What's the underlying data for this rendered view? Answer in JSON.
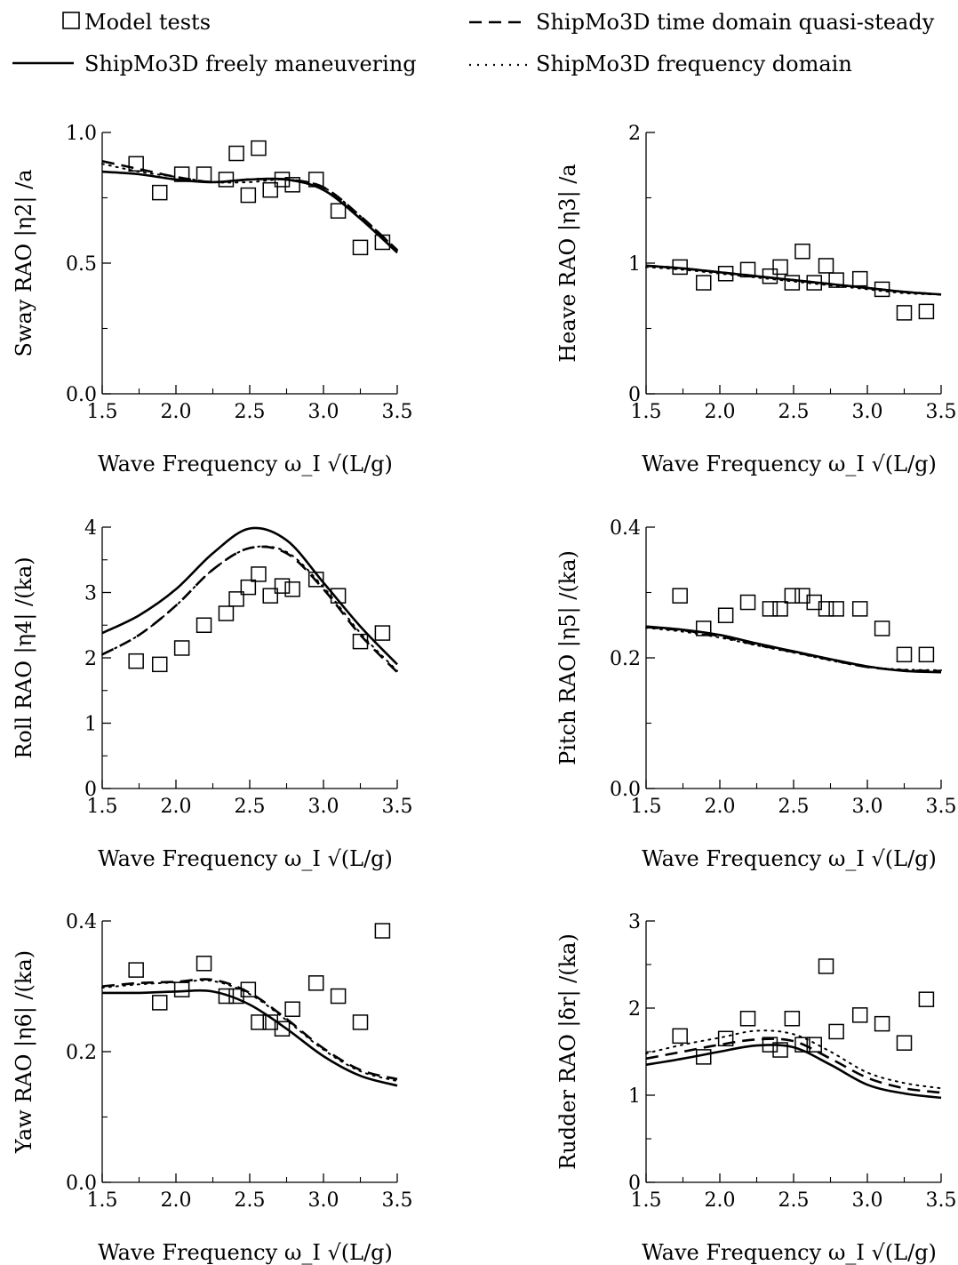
{
  "legend": {
    "model_tests": "Model tests",
    "time_domain": "ShipMo3D time domain quasi-steady",
    "freely": "ShipMo3D freely maneuvering",
    "frequency": "ShipMo3D frequency domain"
  },
  "chart_data": [
    {
      "type": "line",
      "title": "",
      "xlabel": "Wave Frequency ω_I √(L/g)",
      "ylabel": "Sway RAO |η2| /a",
      "xlim": [
        1.5,
        3.5
      ],
      "ylim": [
        0,
        1.0
      ],
      "xticks": [
        "1.5",
        "2.0",
        "2.5",
        "3.0",
        "3.5"
      ],
      "yticks": [
        "0.0",
        "0.5",
        "1.0"
      ],
      "grid": false,
      "x": [
        1.5,
        1.75,
        2.0,
        2.25,
        2.5,
        2.75,
        3.0,
        3.25,
        3.5
      ],
      "series": [
        {
          "name": "ShipMo3D freely maneuvering",
          "values": [
            0.85,
            0.84,
            0.82,
            0.81,
            0.82,
            0.82,
            0.78,
            0.67,
            0.54
          ]
        },
        {
          "name": "ShipMo3D time domain quasi-steady",
          "values": [
            0.89,
            0.86,
            0.83,
            0.81,
            0.82,
            0.82,
            0.79,
            0.68,
            0.55
          ]
        },
        {
          "name": "ShipMo3D frequency domain",
          "values": [
            0.88,
            0.85,
            0.83,
            0.81,
            0.81,
            0.82,
            0.79,
            0.68,
            0.55
          ]
        }
      ],
      "model_tests": [
        [
          1.73,
          0.88
        ],
        [
          1.89,
          0.77
        ],
        [
          2.04,
          0.84
        ],
        [
          2.19,
          0.84
        ],
        [
          2.34,
          0.82
        ],
        [
          2.41,
          0.92
        ],
        [
          2.49,
          0.76
        ],
        [
          2.56,
          0.94
        ],
        [
          2.64,
          0.78
        ],
        [
          2.72,
          0.82
        ],
        [
          2.79,
          0.8
        ],
        [
          2.95,
          0.82
        ],
        [
          3.1,
          0.7
        ],
        [
          3.25,
          0.56
        ],
        [
          3.4,
          0.58
        ]
      ]
    },
    {
      "type": "line",
      "title": "",
      "xlabel": "Wave Frequency ω_I √(L/g)",
      "ylabel": "Heave RAO |η3| /a",
      "xlim": [
        1.5,
        3.5
      ],
      "ylim": [
        0,
        2
      ],
      "xticks": [
        "1.5",
        "2.0",
        "2.5",
        "3.0",
        "3.5"
      ],
      "yticks": [
        "0",
        "1",
        "2"
      ],
      "grid": false,
      "x": [
        1.5,
        1.75,
        2.0,
        2.25,
        2.5,
        2.75,
        3.0,
        3.25,
        3.5
      ],
      "series": [
        {
          "name": "ShipMo3D freely maneuvering",
          "values": [
            0.98,
            0.96,
            0.93,
            0.9,
            0.87,
            0.84,
            0.81,
            0.78,
            0.76
          ]
        },
        {
          "name": "ShipMo3D time domain quasi-steady",
          "values": [
            0.98,
            0.96,
            0.93,
            0.9,
            0.87,
            0.84,
            0.81,
            0.78,
            0.76
          ]
        },
        {
          "name": "ShipMo3D frequency domain",
          "values": [
            0.97,
            0.95,
            0.92,
            0.89,
            0.86,
            0.83,
            0.8,
            0.77,
            0.76
          ]
        }
      ],
      "model_tests": [
        [
          1.73,
          0.97
        ],
        [
          1.89,
          0.85
        ],
        [
          2.04,
          0.92
        ],
        [
          2.19,
          0.95
        ],
        [
          2.34,
          0.9
        ],
        [
          2.41,
          0.97
        ],
        [
          2.49,
          0.85
        ],
        [
          2.56,
          1.09
        ],
        [
          2.64,
          0.85
        ],
        [
          2.72,
          0.98
        ],
        [
          2.79,
          0.87
        ],
        [
          2.95,
          0.88
        ],
        [
          3.1,
          0.8
        ],
        [
          3.25,
          0.62
        ],
        [
          3.4,
          0.63
        ]
      ]
    },
    {
      "type": "line",
      "title": "",
      "xlabel": "Wave Frequency ω_I √(L/g)",
      "ylabel": "Roll RAO |η4| /(ka)",
      "xlim": [
        1.5,
        3.5
      ],
      "ylim": [
        0,
        4
      ],
      "xticks": [
        "1.5",
        "2.0",
        "2.5",
        "3.0",
        "3.5"
      ],
      "yticks": [
        "0",
        "1",
        "2",
        "3",
        "4"
      ],
      "grid": false,
      "x": [
        1.5,
        1.75,
        2.0,
        2.25,
        2.5,
        2.75,
        3.0,
        3.25,
        3.5
      ],
      "series": [
        {
          "name": "ShipMo3D freely maneuvering",
          "values": [
            2.38,
            2.65,
            3.05,
            3.6,
            3.98,
            3.8,
            3.15,
            2.48,
            1.9
          ]
        },
        {
          "name": "ShipMo3D time domain quasi-steady",
          "values": [
            2.05,
            2.35,
            2.8,
            3.35,
            3.68,
            3.6,
            3.05,
            2.35,
            1.78
          ]
        },
        {
          "name": "ShipMo3D frequency domain",
          "values": [
            2.05,
            2.35,
            2.8,
            3.35,
            3.68,
            3.62,
            3.08,
            2.38,
            1.8
          ]
        }
      ],
      "model_tests": [
        [
          1.73,
          1.95
        ],
        [
          1.89,
          1.9
        ],
        [
          2.04,
          2.15
        ],
        [
          2.19,
          2.5
        ],
        [
          2.34,
          2.68
        ],
        [
          2.41,
          2.9
        ],
        [
          2.49,
          3.08
        ],
        [
          2.56,
          3.28
        ],
        [
          2.64,
          2.95
        ],
        [
          2.72,
          3.1
        ],
        [
          2.79,
          3.05
        ],
        [
          2.95,
          3.2
        ],
        [
          3.1,
          2.95
        ],
        [
          3.25,
          2.25
        ],
        [
          3.4,
          2.38
        ]
      ]
    },
    {
      "type": "line",
      "title": "",
      "xlabel": "Wave Frequency ω_I √(L/g)",
      "ylabel": "Pitch RAO |η5| /(ka)",
      "xlim": [
        1.5,
        3.5
      ],
      "ylim": [
        0,
        0.4
      ],
      "xticks": [
        "1.5",
        "2.0",
        "2.5",
        "3.0",
        "3.5"
      ],
      "yticks": [
        "0.0",
        "0.2",
        "0.4"
      ],
      "grid": false,
      "x": [
        1.5,
        1.75,
        2.0,
        2.25,
        2.5,
        2.75,
        3.0,
        3.25,
        3.5
      ],
      "series": [
        {
          "name": "ShipMo3D freely maneuvering",
          "values": [
            0.248,
            0.243,
            0.235,
            0.222,
            0.21,
            0.198,
            0.187,
            0.18,
            0.178
          ]
        },
        {
          "name": "ShipMo3D time domain quasi-steady",
          "values": [
            0.247,
            0.242,
            0.233,
            0.22,
            0.209,
            0.197,
            0.186,
            0.181,
            0.18
          ]
        },
        {
          "name": "ShipMo3D frequency domain",
          "values": [
            0.246,
            0.24,
            0.231,
            0.219,
            0.208,
            0.196,
            0.186,
            0.182,
            0.181
          ]
        }
      ],
      "model_tests": [
        [
          1.73,
          0.295
        ],
        [
          1.89,
          0.245
        ],
        [
          2.04,
          0.265
        ],
        [
          2.19,
          0.285
        ],
        [
          2.34,
          0.275
        ],
        [
          2.41,
          0.275
        ],
        [
          2.49,
          0.295
        ],
        [
          2.56,
          0.295
        ],
        [
          2.64,
          0.285
        ],
        [
          2.72,
          0.275
        ],
        [
          2.79,
          0.275
        ],
        [
          2.95,
          0.275
        ],
        [
          3.1,
          0.245
        ],
        [
          3.25,
          0.205
        ],
        [
          3.4,
          0.205
        ]
      ]
    },
    {
      "type": "line",
      "title": "",
      "xlabel": "Wave Frequency ω_I √(L/g)",
      "ylabel": "Yaw RAO |η6| /(ka)",
      "xlim": [
        1.5,
        3.5
      ],
      "ylim": [
        0,
        0.4
      ],
      "xticks": [
        "1.5",
        "2.0",
        "2.5",
        "3.0",
        "3.5"
      ],
      "yticks": [
        "0.0",
        "0.2",
        "0.4"
      ],
      "grid": false,
      "x": [
        1.5,
        1.75,
        2.0,
        2.25,
        2.5,
        2.75,
        3.0,
        3.25,
        3.5
      ],
      "series": [
        {
          "name": "ShipMo3D freely maneuvering",
          "values": [
            0.29,
            0.29,
            0.292,
            0.292,
            0.272,
            0.235,
            0.193,
            0.163,
            0.148
          ]
        },
        {
          "name": "ShipMo3D time domain quasi-steady",
          "values": [
            0.3,
            0.305,
            0.307,
            0.31,
            0.29,
            0.25,
            0.205,
            0.172,
            0.158
          ]
        },
        {
          "name": "ShipMo3D frequency domain",
          "values": [
            0.298,
            0.303,
            0.306,
            0.308,
            0.288,
            0.248,
            0.203,
            0.17,
            0.155
          ]
        }
      ],
      "model_tests": [
        [
          1.73,
          0.325
        ],
        [
          1.89,
          0.275
        ],
        [
          2.04,
          0.295
        ],
        [
          2.19,
          0.335
        ],
        [
          2.34,
          0.285
        ],
        [
          2.41,
          0.285
        ],
        [
          2.49,
          0.295
        ],
        [
          2.56,
          0.245
        ],
        [
          2.64,
          0.245
        ],
        [
          2.72,
          0.235
        ],
        [
          2.79,
          0.265
        ],
        [
          2.95,
          0.305
        ],
        [
          3.1,
          0.285
        ],
        [
          3.25,
          0.245
        ],
        [
          3.4,
          0.385
        ]
      ]
    },
    {
      "type": "line",
      "title": "",
      "xlabel": "Wave Frequency ω_I √(L/g)",
      "ylabel": "Rudder RAO |δr| /(ka)",
      "xlim": [
        1.5,
        3.5
      ],
      "ylim": [
        0,
        3
      ],
      "xticks": [
        "1.5",
        "2.0",
        "2.5",
        "3.0",
        "3.5"
      ],
      "yticks": [
        "0",
        "1",
        "2",
        "3"
      ],
      "grid": false,
      "x": [
        1.5,
        1.75,
        2.0,
        2.25,
        2.5,
        2.75,
        3.0,
        3.25,
        3.5
      ],
      "series": [
        {
          "name": "ShipMo3D freely maneuvering",
          "values": [
            1.35,
            1.42,
            1.5,
            1.57,
            1.55,
            1.35,
            1.12,
            1.02,
            0.97
          ]
        },
        {
          "name": "ShipMo3D time domain quasi-steady",
          "values": [
            1.42,
            1.5,
            1.58,
            1.64,
            1.62,
            1.42,
            1.2,
            1.08,
            1.03
          ]
        },
        {
          "name": "ShipMo3D frequency domain",
          "values": [
            1.48,
            1.58,
            1.66,
            1.74,
            1.7,
            1.5,
            1.26,
            1.14,
            1.08
          ]
        }
      ],
      "model_tests": [
        [
          1.73,
          1.68
        ],
        [
          1.89,
          1.44
        ],
        [
          2.04,
          1.65
        ],
        [
          2.19,
          1.88
        ],
        [
          2.34,
          1.58
        ],
        [
          2.41,
          1.52
        ],
        [
          2.49,
          1.88
        ],
        [
          2.56,
          1.58
        ],
        [
          2.64,
          1.58
        ],
        [
          2.72,
          2.48
        ],
        [
          2.79,
          1.73
        ],
        [
          2.95,
          1.92
        ],
        [
          3.1,
          1.82
        ],
        [
          3.25,
          1.6
        ],
        [
          3.4,
          2.1
        ]
      ]
    }
  ]
}
